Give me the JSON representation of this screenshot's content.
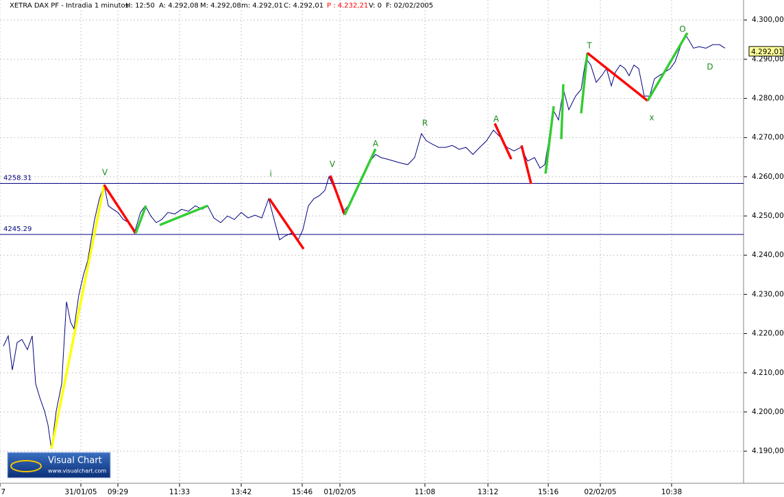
{
  "chart_data": {
    "type": "line",
    "header": [
      "XETRA DAX PF - Intradia 1 minutos",
      "H: 12:50",
      "A: 4.292,08",
      "M: 4.292,08",
      "m: 4.292,01",
      "C: 4.292,01",
      "P : 4.232,21",
      "V: 0",
      "F: 02/02/2005"
    ],
    "color": "#000080",
    "x": [
      5,
      12,
      18,
      25,
      32,
      40,
      47,
      52,
      58,
      65,
      70,
      75,
      82,
      90,
      97,
      103,
      108,
      115,
      122,
      128,
      133,
      138,
      145,
      152,
      158,
      165,
      172,
      180,
      188,
      196,
      205,
      212,
      220,
      228,
      236,
      245,
      255,
      265,
      275,
      285,
      295,
      303,
      312,
      322,
      332,
      342,
      352,
      362,
      372,
      382,
      392,
      400,
      408,
      415,
      425,
      435,
      442,
      450,
      458,
      466,
      474,
      480,
      488,
      494,
      500,
      508,
      515,
      522,
      530,
      540,
      548,
      556,
      565,
      575,
      585,
      595,
      605,
      615,
      622,
      630,
      640,
      650,
      660,
      670,
      680,
      690,
      700,
      710,
      720,
      730,
      740,
      750,
      760,
      770,
      780,
      788,
      795,
      800,
      807,
      815,
      822,
      830,
      840,
      848,
      855,
      862,
      870,
      878,
      885,
      892,
      898,
      905,
      912,
      918,
      925,
      932,
      940,
      948,
      955,
      962,
      970,
      978,
      985,
      992,
      1000,
      1006,
      1012,
      1020,
      1030,
      1040,
      1050,
      1058
    ],
    "values": [
      4216.8,
      4219.4,
      4210.7,
      4217.7,
      4218.5,
      4215.9,
      4219.4,
      4207.2,
      4203.7,
      4200.2,
      4196.7,
      4190.6,
      4200.2,
      4207.2,
      4228.1,
      4222.9,
      4221.2,
      4229.9,
      4235.1,
      4238.6,
      4243.9,
      4249.1,
      4254.4,
      4257.9,
      4252.6,
      4251.7,
      4250.9,
      4249.1,
      4248.3,
      4245.6,
      4250.9,
      4252.6,
      4250.0,
      4248.3,
      4249.1,
      4250.9,
      4250.5,
      4251.7,
      4251.2,
      4252.6,
      4251.7,
      4252.6,
      4249.5,
      4248.3,
      4250.0,
      4249.1,
      4250.9,
      4249.5,
      4250.2,
      4249.5,
      4254.4,
      4249.1,
      4243.9,
      4244.8,
      4245.6,
      4243.9,
      4246.5,
      4252.6,
      4254.4,
      4255.2,
      4256.5,
      4260.0,
      4257.0,
      4254.4,
      4250.9,
      4252.6,
      4254.4,
      4257.9,
      4260.5,
      4264.0,
      4265.7,
      4264.9,
      4264.5,
      4264.0,
      4263.5,
      4263.1,
      4264.9,
      4271.0,
      4269.2,
      4268.4,
      4267.5,
      4267.5,
      4268.0,
      4267.0,
      4267.5,
      4265.7,
      4267.5,
      4269.2,
      4271.9,
      4270.1,
      4267.5,
      4266.6,
      4267.5,
      4264.0,
      4264.9,
      4262.2,
      4263.1,
      4268.4,
      4277.1,
      4274.5,
      4282.3,
      4277.1,
      4280.6,
      4282.3,
      4290.2,
      4288.5,
      4284.1,
      4285.8,
      4287.6,
      4283.2,
      4286.7,
      4288.5,
      4287.6,
      4285.8,
      4288.5,
      4287.6,
      4280.6,
      4280.6,
      4285.0,
      4285.8,
      4286.7,
      4287.6,
      4289.3,
      4292.8,
      4296.3,
      4294.6,
      4292.8,
      4293.2,
      4292.8,
      4293.7,
      4293.7,
      4292.8
    ],
    "waves": [
      {
        "color": "#ffff00",
        "x": [
          75,
          152
        ],
        "values": [
          4190.6,
          4257.9
        ]
      },
      {
        "color": "#ff0000",
        "x": [
          152,
          198
        ],
        "values": [
          4257.9,
          4245.6
        ]
      },
      {
        "color": "#33cc33",
        "x": [
          198,
          213
        ],
        "values": [
          4245.6,
          4252.6
        ]
      },
      {
        "color": "#33cc33",
        "x": [
          233,
          303
        ],
        "values": [
          4247.7,
          4252.6
        ]
      },
      {
        "color": "#ff0000",
        "x": [
          393,
          443
        ],
        "values": [
          4254.4,
          4241.6
        ]
      },
      {
        "color": "#ff0000",
        "x": [
          482,
          503
        ],
        "values": [
          4260.3,
          4250.3
        ]
      },
      {
        "color": "#33cc33",
        "x": [
          503,
          548
        ],
        "values": [
          4250.3,
          4267.1
        ]
      },
      {
        "color": "#ff0000",
        "x": [
          722,
          746
        ],
        "values": [
          4273.6,
          4264.5
        ]
      },
      {
        "color": "#ff0000",
        "x": [
          761,
          775
        ],
        "values": [
          4268.0,
          4258.2
        ]
      },
      {
        "color": "#33cc33",
        "x": [
          796,
          808
        ],
        "values": [
          4260.8,
          4278.0
        ]
      },
      {
        "color": "#33cc33",
        "x": [
          819,
          822
        ],
        "values": [
          4269.6,
          4283.6
        ]
      },
      {
        "color": "#33cc33",
        "x": [
          848,
          857
        ],
        "values": [
          4276.2,
          4291.6
        ]
      },
      {
        "color": "#ff0000",
        "x": [
          857,
          945
        ],
        "values": [
          4291.6,
          4279.4
        ]
      },
      {
        "color": "#33cc33",
        "x": [
          945,
          1003
        ],
        "values": [
          4279.4,
          4296.7
        ]
      }
    ],
    "levels": [
      4258.31,
      4245.29
    ],
    "wave_labels": [
      "V",
      "i",
      "V",
      "A",
      "R",
      "A",
      "T",
      "O",
      "D",
      "x"
    ],
    "last_price": {
      "value": 4292.01,
      "label": "4.292,01"
    },
    "xlim": [
      0,
      1085
    ],
    "ylim": [
      4181.8,
      4305.1
    ],
    "xticks": [
      {
        "value": 0,
        "label": "7"
      },
      {
        "value": 118,
        "label": "31/01/05"
      },
      {
        "value": 172,
        "label": "09:29"
      },
      {
        "value": 262,
        "label": "11:33"
      },
      {
        "value": 352,
        "label": "13:42"
      },
      {
        "value": 441,
        "label": "15:46"
      },
      {
        "value": 496,
        "label": "01/02/05"
      },
      {
        "value": 620,
        "label": "11:08"
      },
      {
        "value": 712,
        "label": "13:12"
      },
      {
        "value": 800,
        "label": "15:16"
      },
      {
        "value": 876,
        "label": "02/02/05"
      },
      {
        "value": 980,
        "label": "10:38"
      }
    ],
    "yticks": [
      {
        "value": 4190,
        "label": "4.190,00"
      },
      {
        "value": 4200,
        "label": "4.200,00"
      },
      {
        "value": 4210,
        "label": "4.210,00"
      },
      {
        "value": 4220,
        "label": "4.220,00"
      },
      {
        "value": 4230,
        "label": "4.230,00"
      },
      {
        "value": 4240,
        "label": "4.240,00"
      },
      {
        "value": 4250,
        "label": "4.250,00"
      },
      {
        "value": 4260,
        "label": "4.260,00"
      },
      {
        "value": 4270,
        "label": "4.270,00"
      },
      {
        "value": 4280,
        "label": "4.280,00"
      },
      {
        "value": 4290,
        "label": "4.290,00"
      },
      {
        "value": 4300,
        "label": "4.300,00"
      }
    ],
    "grid": true,
    "logo": {
      "title": "Visual Chart",
      "url": "www.visualchart.com"
    }
  }
}
